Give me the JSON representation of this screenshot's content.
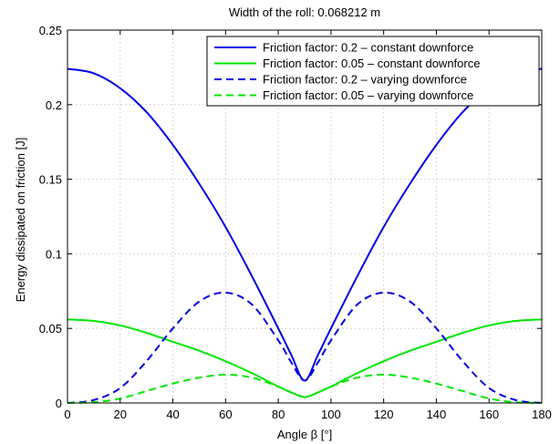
{
  "chart_data": {
    "type": "line",
    "title": "Width of the roll: 0.068212 m",
    "xlabel": "Angle β [°]",
    "ylabel": "Energy dissipated on friction [J]",
    "xlim": [
      0,
      180
    ],
    "ylim": [
      0,
      0.25
    ],
    "xticks": [
      "0",
      "20",
      "40",
      "60",
      "80",
      "100",
      "120",
      "140",
      "160",
      "180"
    ],
    "yticks": [
      "0",
      "0.05",
      "0.1",
      "0.15",
      "0.2",
      "0.25"
    ],
    "grid": true,
    "legend_position": "top-right",
    "series": [
      {
        "name": "Friction factor: 0.2 – constant downforce",
        "color": "#0000e6",
        "dash": "solid",
        "x": [
          0,
          10,
          20,
          30,
          40,
          50,
          60,
          70,
          80,
          85,
          90,
          95,
          100,
          110,
          120,
          130,
          140,
          150,
          160,
          170,
          180
        ],
        "y": [
          0.224,
          0.221,
          0.211,
          0.195,
          0.173,
          0.147,
          0.118,
          0.085,
          0.05,
          0.032,
          0.015,
          0.032,
          0.05,
          0.085,
          0.118,
          0.147,
          0.173,
          0.195,
          0.211,
          0.221,
          0.224
        ]
      },
      {
        "name": "Friction factor: 0.05 – constant downforce",
        "color": "#00e600",
        "dash": "solid",
        "x": [
          0,
          10,
          20,
          30,
          40,
          50,
          60,
          70,
          80,
          85,
          90,
          95,
          100,
          110,
          120,
          130,
          140,
          150,
          160,
          170,
          180
        ],
        "y": [
          0.056,
          0.055,
          0.052,
          0.047,
          0.041,
          0.035,
          0.028,
          0.02,
          0.011,
          0.007,
          0.004,
          0.007,
          0.011,
          0.02,
          0.028,
          0.035,
          0.041,
          0.047,
          0.052,
          0.055,
          0.056
        ]
      },
      {
        "name": "Friction factor: 0.2 – varying downforce",
        "color": "#0000e6",
        "dash": "dashed",
        "x": [
          0,
          10,
          20,
          30,
          40,
          50,
          60,
          70,
          80,
          85,
          90,
          95,
          100,
          110,
          120,
          130,
          140,
          150,
          160,
          170,
          180
        ],
        "y": [
          0.0,
          0.002,
          0.01,
          0.028,
          0.05,
          0.068,
          0.074,
          0.066,
          0.042,
          0.027,
          0.015,
          0.027,
          0.042,
          0.066,
          0.074,
          0.068,
          0.05,
          0.028,
          0.01,
          0.002,
          0.0
        ]
      },
      {
        "name": "Friction factor: 0.05 – varying downforce",
        "color": "#00e600",
        "dash": "dashed",
        "x": [
          0,
          10,
          20,
          30,
          40,
          50,
          60,
          70,
          80,
          85,
          90,
          95,
          100,
          110,
          120,
          130,
          140,
          150,
          160,
          170,
          180
        ],
        "y": [
          0.0,
          0.0005,
          0.003,
          0.008,
          0.013,
          0.017,
          0.019,
          0.017,
          0.011,
          0.007,
          0.004,
          0.007,
          0.011,
          0.017,
          0.019,
          0.017,
          0.013,
          0.008,
          0.003,
          0.0005,
          0.0
        ]
      }
    ]
  }
}
